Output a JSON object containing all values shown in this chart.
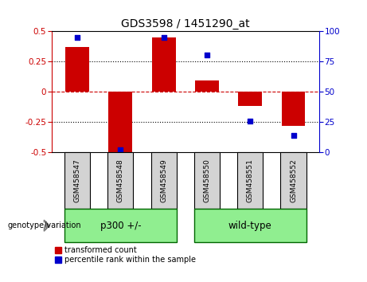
{
  "title": "GDS3598 / 1451290_at",
  "categories": [
    "GSM458547",
    "GSM458548",
    "GSM458549",
    "GSM458550",
    "GSM458551",
    "GSM458552"
  ],
  "red_values": [
    0.37,
    -0.5,
    0.45,
    0.09,
    -0.12,
    -0.28
  ],
  "blue_values": [
    95,
    2,
    95,
    80,
    26,
    14
  ],
  "ylim_left": [
    -0.5,
    0.5
  ],
  "ylim_right": [
    0,
    100
  ],
  "yticks_left": [
    -0.5,
    -0.25,
    0,
    0.25,
    0.5
  ],
  "yticks_right": [
    0,
    25,
    50,
    75,
    100
  ],
  "group1_label": "p300 +/-",
  "group2_label": "wild-type",
  "group1_color": "#90EE90",
  "group2_color": "#90EE90",
  "bar_color": "#cc0000",
  "dot_color": "#0000cc",
  "zero_line_color": "#cc0000",
  "legend_label_red": "transformed count",
  "legend_label_blue": "percentile rank within the sample",
  "genotype_label": "genotype/variation",
  "title_fontsize": 10,
  "tick_fontsize": 7.5,
  "label_fontsize": 6.5,
  "group_fontsize": 8.5,
  "legend_fontsize": 7,
  "bar_width": 0.55
}
